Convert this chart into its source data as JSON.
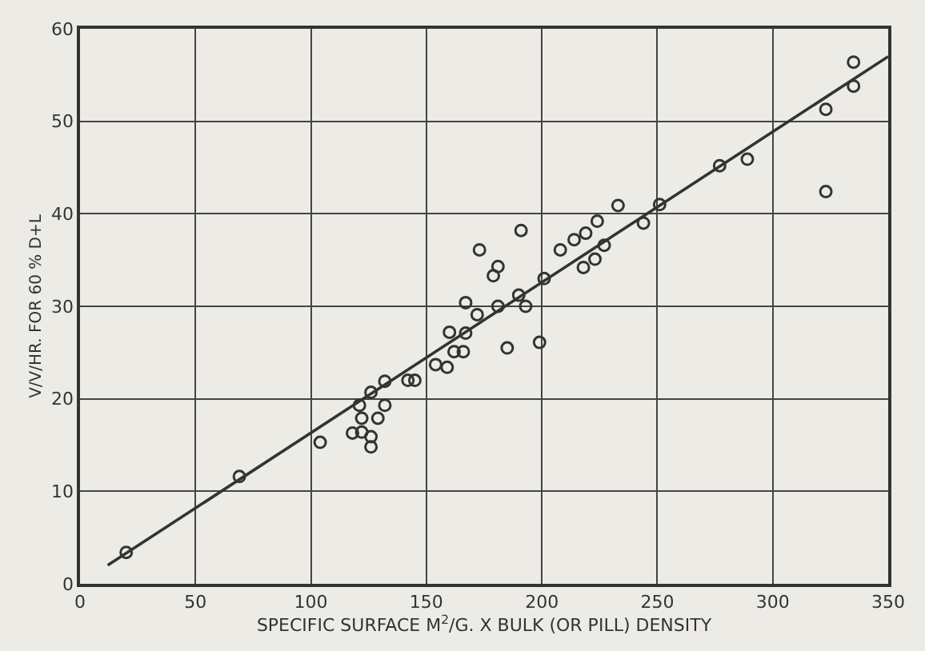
{
  "chart_data": {
    "type": "scatter",
    "xlabel": "SPECIFIC SURFACE M$^{2}$/G. X BULK (OR PILL) DENSITY",
    "ylabel": "V/V/HR. FOR 60 % D+L",
    "xlim": [
      0,
      350
    ],
    "ylim": [
      0,
      60
    ],
    "xticks": [
      0,
      50,
      100,
      150,
      200,
      250,
      300,
      350
    ],
    "yticks": [
      0,
      10,
      20,
      30,
      40,
      50,
      60
    ],
    "grid": true,
    "series": [
      {
        "marker": "circle",
        "color": "#333333",
        "x": [
          20,
          69,
          104,
          118,
          122,
          122,
          121,
          126,
          126,
          126,
          129,
          132,
          132,
          142,
          145,
          154,
          159,
          160,
          162,
          166,
          167,
          167,
          172,
          173,
          179,
          181,
          181,
          185,
          190,
          191,
          193,
          199,
          201,
          208,
          214,
          218,
          219,
          223,
          224,
          227,
          233,
          244,
          251,
          277,
          289,
          323,
          323,
          335,
          335
        ],
        "values": [
          3.4,
          11.6,
          15.3,
          16.3,
          16.4,
          17.9,
          19.3,
          14.8,
          15.9,
          20.7,
          17.9,
          19.3,
          21.9,
          22,
          22,
          23.7,
          23.4,
          27.2,
          25.1,
          25.1,
          27.1,
          30.4,
          29.1,
          36.1,
          33.3,
          30,
          34.3,
          25.5,
          31.2,
          38.2,
          30,
          26.1,
          33,
          36.1,
          37.2,
          34.2,
          37.9,
          35.1,
          39.2,
          36.6,
          40.9,
          39,
          41,
          45.2,
          45.9,
          51.3,
          42.4,
          53.8,
          56.4
        ]
      },
      {
        "type": "line",
        "marker": "none",
        "color": "#333333",
        "x": [
          12,
          350
        ],
        "values": [
          2,
          57
        ]
      }
    ]
  }
}
